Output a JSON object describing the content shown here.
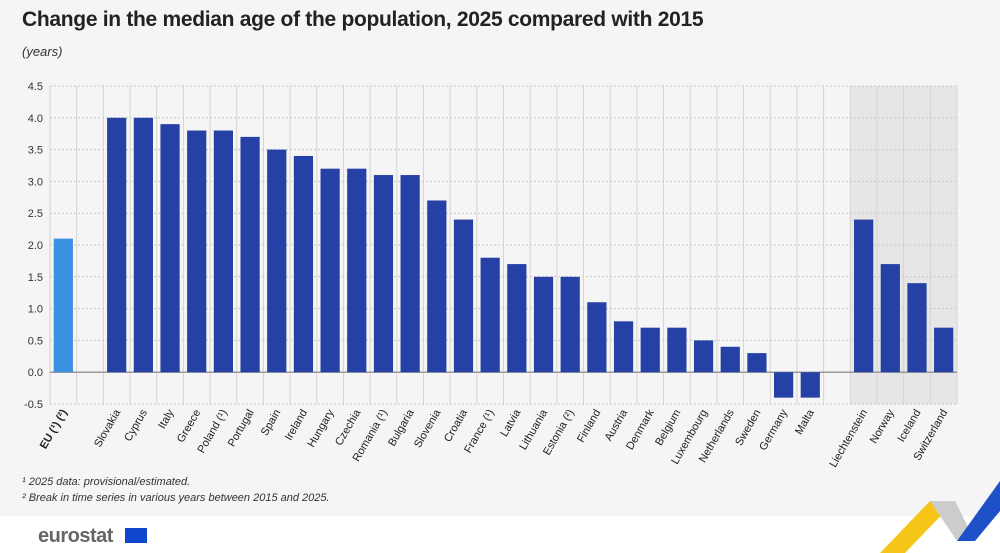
{
  "chart_data": {
    "type": "bar",
    "title": "Change in the median age of the population, 2025 compared with 2015",
    "ylabel": "(years)",
    "ylim": [
      -0.5,
      4.5
    ],
    "yticks": [
      "4.5",
      "4.0",
      "3.5",
      "3.0",
      "2.5",
      "2.0",
      "1.5",
      "1.0",
      "0.5",
      "0.0",
      "-0.5"
    ],
    "grid": true,
    "categories": [
      "EU (¹) (²)",
      "",
      "Slovakia",
      "Cyprus",
      "Italy",
      "Greece",
      "Poland (¹)",
      "Portugal",
      "Spain",
      "Ireland",
      "Hungary",
      "Czechia",
      "Romania (¹)",
      "Bulgaria",
      "Slovenia",
      "Croatia",
      "France (¹)",
      "Latvia",
      "Lithuania",
      "Estonia (²)",
      "Finland",
      "Austria",
      "Denmark",
      "Belgium",
      "Luxembourg",
      "Netherlands",
      "Sweden",
      "Germany",
      "Malta",
      "",
      "Liechtenstein",
      "Norway",
      "Iceland",
      "Switzerland"
    ],
    "values": [
      2.1,
      null,
      4.0,
      4.0,
      3.9,
      3.8,
      3.8,
      3.7,
      3.5,
      3.4,
      3.2,
      3.2,
      3.1,
      3.1,
      2.7,
      2.4,
      1.8,
      1.7,
      1.5,
      1.5,
      1.1,
      0.8,
      0.7,
      0.7,
      0.5,
      0.4,
      0.3,
      -0.4,
      -0.4,
      null,
      2.4,
      1.7,
      1.4,
      0.7
    ],
    "colors": {
      "eu": "#3a8fe0",
      "country": "#2641a5",
      "efta_band": "#e6e6e6"
    },
    "shaded_group": [
      "Liechtenstein",
      "Norway",
      "Iceland",
      "Switzerland"
    ]
  },
  "footnotes": [
    "¹ 2025 data: provisional/estimated.",
    "² Break in time series in various years between 2015 and 2025."
  ],
  "logo": "eurostat"
}
